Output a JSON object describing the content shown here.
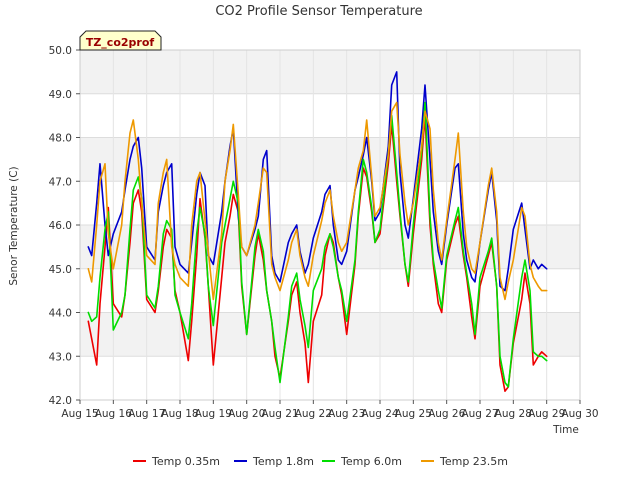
{
  "chart_data": {
    "type": "line",
    "title": "CO2 Profile Sensor Temperature",
    "xlabel": "Time",
    "ylabel": "Senor Temperature (C)",
    "annotation": "TZ_co2prof",
    "ylim": [
      42.0,
      50.0
    ],
    "y_ticks": [
      42.0,
      43.0,
      44.0,
      45.0,
      46.0,
      47.0,
      48.0,
      49.0,
      50.0
    ],
    "y_tick_labels": [
      "42.0",
      "43.0",
      "44.0",
      "45.0",
      "46.0",
      "47.0",
      "48.0",
      "49.0",
      "50.0"
    ],
    "xlim": [
      15,
      30
    ],
    "x_ticks": [
      15,
      16,
      17,
      18,
      19,
      20,
      21,
      22,
      23,
      24,
      25,
      26,
      27,
      28,
      29,
      30
    ],
    "x_tick_labels": [
      "Aug 15",
      "Aug 16",
      "Aug 17",
      "Aug 18",
      "Aug 19",
      "Aug 20",
      "Aug 21",
      "Aug 22",
      "Aug 23",
      "Aug 24",
      "Aug 25",
      "Aug 26",
      "Aug 27",
      "Aug 28",
      "Aug 29",
      "Aug 30"
    ],
    "grid": true,
    "legend_position": "bottom",
    "x_unit_note": "day of August",
    "x": [
      15.25,
      15.35,
      15.5,
      15.6,
      15.75,
      15.85,
      16.0,
      16.25,
      16.35,
      16.5,
      16.6,
      16.75,
      16.85,
      17.0,
      17.25,
      17.35,
      17.5,
      17.6,
      17.75,
      17.85,
      18.0,
      18.25,
      18.35,
      18.5,
      18.6,
      18.75,
      18.85,
      19.0,
      19.25,
      19.35,
      19.5,
      19.6,
      19.75,
      19.85,
      20.0,
      20.25,
      20.35,
      20.5,
      20.6,
      20.75,
      20.85,
      21.0,
      21.25,
      21.35,
      21.5,
      21.6,
      21.75,
      21.85,
      22.0,
      22.25,
      22.35,
      22.5,
      22.6,
      22.75,
      22.85,
      23.0,
      23.25,
      23.35,
      23.5,
      23.6,
      23.75,
      23.85,
      24.0,
      24.25,
      24.35,
      24.5,
      24.6,
      24.75,
      24.85,
      25.0,
      25.25,
      25.35,
      25.5,
      25.6,
      25.75,
      25.85,
      26.0,
      26.25,
      26.35,
      26.5,
      26.6,
      26.75,
      26.85,
      27.0,
      27.25,
      27.35,
      27.5,
      27.6,
      27.75,
      27.85,
      28.0,
      28.25,
      28.35,
      28.5,
      28.6,
      28.75,
      28.85,
      29.0
    ],
    "series": [
      {
        "name": "Temp 0.35m",
        "color": "#ee0000",
        "values": [
          43.8,
          43.4,
          42.8,
          44.2,
          45.5,
          46.4,
          44.2,
          43.9,
          44.4,
          45.6,
          46.5,
          46.8,
          46.3,
          44.3,
          44.0,
          44.5,
          45.5,
          45.9,
          45.7,
          44.5,
          44.0,
          42.9,
          43.8,
          45.3,
          46.6,
          45.7,
          44.6,
          42.8,
          44.8,
          45.6,
          46.2,
          46.7,
          46.3,
          44.6,
          43.5,
          45.3,
          45.8,
          45.2,
          44.5,
          43.8,
          43.0,
          42.5,
          43.8,
          44.4,
          44.7,
          44.0,
          43.3,
          42.4,
          43.8,
          44.4,
          45.3,
          45.8,
          45.6,
          44.8,
          44.4,
          43.5,
          45.1,
          46.2,
          47.3,
          47.1,
          46.3,
          45.6,
          45.8,
          47.4,
          48.3,
          47.0,
          46.2,
          45.1,
          44.6,
          45.8,
          47.5,
          48.5,
          46.0,
          45.1,
          44.2,
          44.0,
          45.2,
          46.0,
          46.2,
          45.3,
          44.8,
          43.9,
          43.4,
          44.6,
          45.3,
          45.6,
          44.6,
          42.8,
          42.2,
          42.3,
          43.3,
          44.3,
          44.9,
          44.2,
          42.8,
          43.0,
          43.1,
          43.0
        ]
      },
      {
        "name": "Temp 1.8m",
        "color": "#0000cc",
        "values": [
          45.5,
          45.3,
          46.5,
          47.4,
          46.0,
          45.3,
          45.8,
          46.3,
          46.8,
          47.5,
          47.8,
          48.0,
          47.3,
          45.5,
          45.2,
          46.3,
          46.9,
          47.2,
          47.4,
          45.5,
          45.1,
          44.9,
          45.6,
          46.7,
          47.2,
          46.9,
          45.3,
          45.1,
          46.3,
          47.0,
          47.8,
          48.2,
          46.2,
          45.5,
          45.3,
          45.9,
          46.2,
          47.5,
          47.7,
          45.3,
          44.9,
          44.7,
          45.6,
          45.8,
          46.0,
          45.4,
          44.9,
          45.1,
          45.7,
          46.3,
          46.7,
          46.9,
          46.0,
          45.2,
          45.1,
          45.4,
          46.8,
          47.1,
          47.6,
          48.0,
          47.0,
          46.1,
          46.3,
          47.8,
          49.2,
          49.5,
          47.2,
          46.0,
          45.7,
          46.6,
          48.2,
          49.2,
          47.5,
          46.3,
          45.4,
          45.1,
          46.0,
          47.3,
          47.4,
          45.8,
          45.2,
          44.8,
          44.7,
          45.6,
          46.8,
          47.2,
          46.1,
          44.6,
          44.5,
          45.0,
          45.9,
          46.5,
          45.9,
          45.0,
          45.2,
          45.0,
          45.1,
          45.0
        ]
      },
      {
        "name": "Temp 6.0m",
        "color": "#00dd00",
        "values": [
          44.0,
          43.8,
          43.9,
          44.8,
          45.9,
          46.3,
          43.6,
          44.0,
          44.4,
          45.9,
          46.8,
          47.1,
          46.6,
          44.4,
          44.1,
          44.6,
          45.8,
          46.1,
          45.9,
          44.4,
          44.0,
          43.4,
          44.2,
          45.8,
          46.4,
          45.8,
          44.6,
          43.7,
          45.6,
          46.0,
          46.6,
          47.0,
          46.5,
          44.7,
          43.5,
          45.5,
          45.9,
          45.4,
          44.5,
          43.8,
          43.2,
          42.4,
          43.9,
          44.6,
          44.9,
          44.3,
          43.7,
          43.2,
          44.5,
          45.0,
          45.5,
          45.8,
          45.5,
          44.8,
          44.5,
          43.8,
          45.2,
          46.3,
          47.5,
          47.2,
          46.4,
          45.6,
          45.9,
          47.6,
          48.5,
          47.2,
          46.3,
          45.1,
          44.7,
          46.0,
          47.7,
          48.8,
          46.2,
          45.2,
          44.5,
          44.1,
          45.3,
          46.1,
          46.4,
          45.4,
          44.9,
          44.2,
          43.5,
          44.8,
          45.4,
          45.7,
          44.6,
          43.0,
          42.4,
          42.3,
          43.4,
          44.8,
          45.2,
          44.5,
          43.1,
          43.0,
          43.0,
          42.9
        ]
      },
      {
        "name": "Temp 23.5m",
        "color": "#ee9900",
        "values": [
          45.0,
          44.7,
          46.0,
          47.0,
          47.4,
          45.8,
          45.0,
          46.0,
          47.0,
          48.1,
          48.4,
          47.5,
          46.5,
          45.3,
          45.1,
          46.5,
          47.2,
          47.5,
          45.5,
          45.1,
          44.8,
          44.6,
          46.0,
          47.0,
          47.2,
          46.1,
          45.4,
          44.3,
          45.8,
          47.0,
          47.7,
          48.3,
          46.7,
          45.5,
          45.3,
          46.0,
          46.5,
          47.3,
          47.2,
          45.1,
          44.8,
          44.5,
          45.2,
          45.6,
          45.9,
          45.3,
          44.8,
          44.6,
          45.3,
          46.1,
          46.5,
          46.8,
          46.2,
          45.6,
          45.4,
          45.6,
          46.8,
          47.3,
          47.7,
          48.4,
          47.1,
          46.2,
          46.4,
          47.6,
          48.6,
          48.8,
          47.6,
          46.5,
          46.0,
          46.5,
          47.8,
          48.6,
          48.2,
          46.8,
          45.6,
          45.2,
          46.1,
          47.5,
          48.1,
          46.3,
          45.5,
          45.0,
          44.9,
          45.6,
          46.9,
          47.3,
          46.3,
          44.8,
          44.3,
          44.7,
          45.2,
          46.4,
          46.2,
          45.1,
          44.8,
          44.6,
          44.5,
          44.5
        ]
      }
    ]
  }
}
